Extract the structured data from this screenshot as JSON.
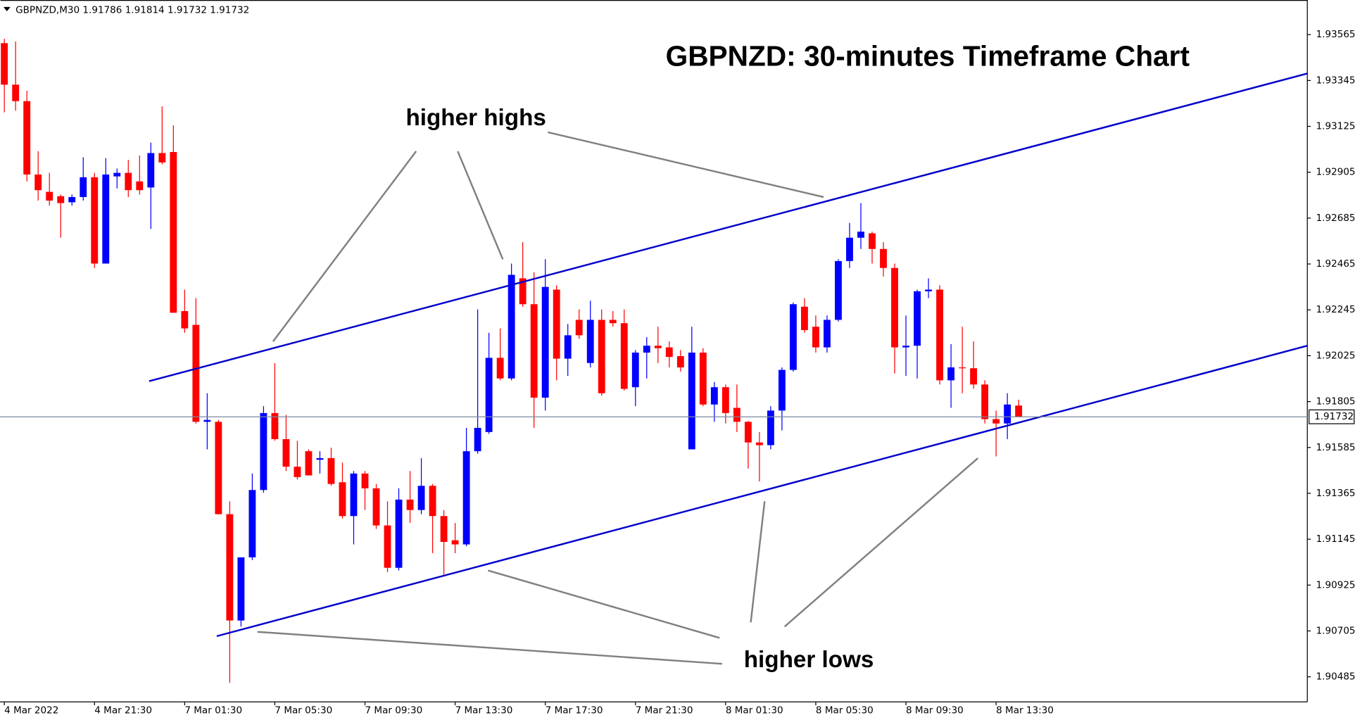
{
  "chart_data": {
    "type": "candlestick",
    "symbol": "GBPNZD,M30",
    "title": "GBPNZD: 30-minutes Timeframe Chart",
    "annotations": [
      "higher highs",
      "higher lows"
    ],
    "up_color": "#0000ff",
    "down_color": "#ff0000",
    "current_price": 1.91732,
    "categories": [
      "4 Mar 2022",
      null,
      null,
      null,
      null,
      null,
      null,
      null,
      "4 Mar 21:30",
      null,
      null,
      null,
      null,
      null,
      null,
      null,
      "7 Mar 01:30",
      null,
      null,
      null,
      null,
      null,
      null,
      null,
      "7 Mar 05:30",
      null,
      null,
      null,
      null,
      null,
      null,
      null,
      "7 Mar 09:30",
      null,
      null,
      null,
      null,
      null,
      null,
      null,
      "7 Mar 13:30",
      null,
      null,
      null,
      null,
      null,
      null,
      null,
      "7 Mar 17:30",
      null,
      null,
      null,
      null,
      null,
      null,
      null,
      "7 Mar 21:30",
      null,
      null,
      null,
      null,
      null,
      null,
      null,
      "8 Mar 01:30",
      null,
      null,
      null,
      null,
      null,
      null,
      null,
      "8 Mar 05:30",
      null,
      null,
      null,
      null,
      null,
      null,
      null,
      "8 Mar 09:30",
      null,
      null,
      null,
      null,
      null,
      null,
      null,
      "8 Mar 13:30",
      null,
      null
    ],
    "open": [
      1.93524,
      1.93325,
      1.93246,
      1.92894,
      1.92811,
      1.9279,
      1.92761,
      1.92786,
      1.92881,
      1.92467,
      1.92885,
      1.92902,
      1.92861,
      1.92832,
      1.92997,
      1.93002,
      1.92239,
      1.92173,
      1.91708,
      1.91708,
      1.91265,
      1.90755,
      1.91058,
      1.91381,
      1.9175,
      1.91625,
      1.91493,
      1.91567,
      1.91526,
      1.91534,
      1.91418,
      1.91256,
      1.9146,
      1.91389,
      1.91211,
      1.91008,
      1.91335,
      1.91285,
      1.91401,
      1.91256,
      1.9114,
      1.9112,
      1.91567,
      1.91659,
      1.92015,
      1.91916,
      1.92396,
      1.92272,
      1.91824,
      1.92342,
      1.92011,
      1.92197,
      1.9199,
      1.92197,
      1.92197,
      1.92181,
      1.91874,
      1.9204,
      1.92073,
      1.92065,
      1.92023,
      1.91576,
      1.9204,
      1.91791,
      1.91874,
      1.91775,
      1.91708,
      1.91609,
      1.91596,
      1.91762,
      1.91957,
      1.9226,
      1.92164,
      1.92065,
      1.92197,
      1.92479,
      1.92591,
      1.92612,
      1.92537,
      1.92446,
      1.92065,
      1.92073,
      1.92334,
      1.92342,
      1.91907,
      1.91969,
      1.91965,
      1.91887,
      1.91721,
      1.917,
      1.91786
    ],
    "high": [
      1.93545,
      1.93532,
      1.93296,
      1.93006,
      1.92902,
      1.92798,
      1.92798,
      1.92977,
      1.92902,
      1.92973,
      1.92923,
      1.92964,
      1.92985,
      1.93047,
      1.93221,
      1.9313,
      1.92342,
      1.92301,
      1.91845,
      1.91717,
      1.91327,
      1.91058,
      1.9146,
      1.91783,
      1.9199,
      1.91741,
      1.91617,
      1.91576,
      1.91567,
      1.91584,
      1.91513,
      1.91472,
      1.91472,
      1.9141,
      1.91327,
      1.91389,
      1.91472,
      1.91534,
      1.9141,
      1.91285,
      1.91223,
      1.91679,
      1.92247,
      1.92135,
      1.92156,
      1.92467,
      1.9257,
      1.92425,
      1.92488,
      1.92363,
      1.92177,
      1.92247,
      1.92289,
      1.92247,
      1.92239,
      1.92247,
      1.92052,
      1.92114,
      1.92164,
      1.92094,
      1.92052,
      1.92164,
      1.92061,
      1.91899,
      1.91887,
      1.91887,
      1.91712,
      1.91659,
      1.91783,
      1.91969,
      1.9228,
      1.92301,
      1.92218,
      1.92218,
      1.92488,
      1.92662,
      1.92757,
      1.9262,
      1.9257,
      1.92467,
      1.92218,
      1.92342,
      1.92396,
      1.92363,
      1.92081,
      1.92164,
      1.92094,
      1.91907,
      1.91762,
      1.91845,
      1.91814
    ],
    "low": [
      1.93192,
      1.932,
      1.92861,
      1.92769,
      1.92745,
      1.92591,
      1.92745,
      1.92769,
      1.92446,
      1.92467,
      1.92827,
      1.92786,
      1.92798,
      1.92633,
      1.92943,
      1.92231,
      1.92135,
      1.917,
      1.91576,
      1.91265,
      1.90456,
      1.90726,
      1.91045,
      1.91368,
      1.91617,
      1.91472,
      1.91431,
      1.91451,
      1.9146,
      1.91401,
      1.91244,
      1.9112,
      1.91285,
      1.91194,
      1.90987,
      1.90995,
      1.91223,
      1.91265,
      1.91078,
      1.90975,
      1.91078,
      1.91111,
      1.91555,
      1.9165,
      1.91907,
      1.91907,
      1.9226,
      1.91679,
      1.91762,
      1.91907,
      1.91928,
      1.92106,
      1.91969,
      1.91833,
      1.92164,
      1.91858,
      1.91783,
      1.91916,
      1.9199,
      1.91969,
      1.91949,
      1.91576,
      1.91783,
      1.91708,
      1.917,
      1.91659,
      1.91484,
      1.91422,
      1.91576,
      1.91667,
      1.91949,
      1.92135,
      1.9204,
      1.9204,
      1.92189,
      1.92446,
      1.92537,
      1.92467,
      1.92405,
      1.9194,
      1.91928,
      1.91916,
      1.92301,
      1.91887,
      1.91775,
      1.91845,
      1.91866,
      1.917,
      1.91542,
      1.91625,
      1.91732
    ],
    "close": [
      1.93325,
      1.93246,
      1.92894,
      1.92819,
      1.92769,
      1.92757,
      1.92786,
      1.92881,
      1.92467,
      1.92894,
      1.92902,
      1.92819,
      1.92819,
      1.92997,
      1.92952,
      1.92231,
      1.92156,
      1.91708,
      1.91717,
      1.91265,
      1.90755,
      1.91058,
      1.91381,
      1.9175,
      1.91625,
      1.91493,
      1.91443,
      1.91451,
      1.91534,
      1.9141,
      1.91256,
      1.9146,
      1.91389,
      1.91211,
      1.91008,
      1.91335,
      1.91285,
      1.91401,
      1.91256,
      1.91132,
      1.9112,
      1.91567,
      1.91679,
      1.92015,
      1.91916,
      1.92413,
      1.92272,
      1.91824,
      1.92355,
      1.92011,
      1.92123,
      1.92123,
      1.92197,
      1.91845,
      1.92181,
      1.91866,
      1.9204,
      1.92073,
      1.92061,
      1.92019,
      1.91969,
      1.9204,
      1.91791,
      1.91874,
      1.9175,
      1.91708,
      1.91609,
      1.91596,
      1.91762,
      1.91957,
      1.92272,
      1.92148,
      1.92065,
      1.92197,
      1.92479,
      1.92591,
      1.9262,
      1.92537,
      1.92446,
      1.92065,
      1.92073,
      1.92334,
      1.92342,
      1.91907,
      1.91969,
      1.91965,
      1.91887,
      1.91721,
      1.917,
      1.91791,
      1.91732
    ],
    "ylim": [
      1.90365,
      1.93731
    ],
    "yticks": [
      1.93565,
      1.93345,
      1.93125,
      1.92905,
      1.92685,
      1.92465,
      1.92245,
      1.92025,
      1.91805,
      1.91585,
      1.91365,
      1.91145,
      1.90925,
      1.90705,
      1.90485
    ]
  }
}
